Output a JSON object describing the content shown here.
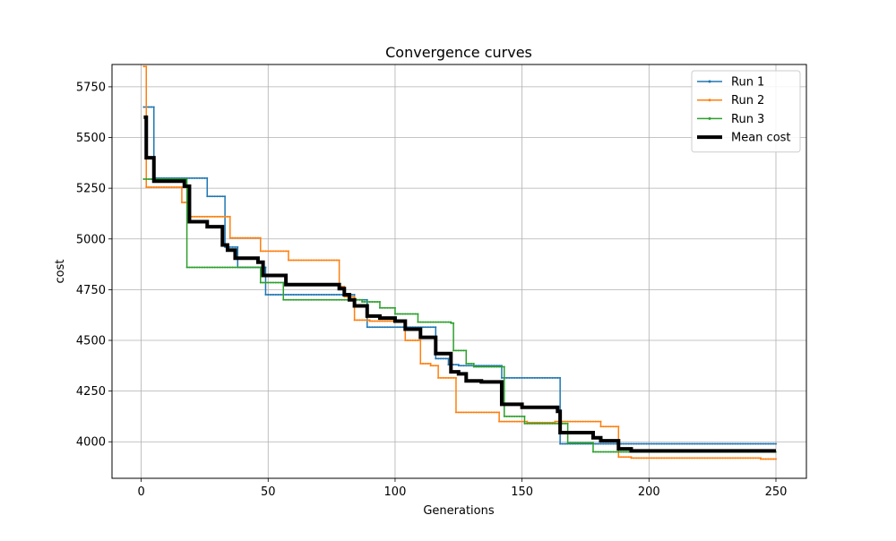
{
  "chart_data": {
    "type": "line",
    "title": "Convergence curves",
    "xlabel": "Generations",
    "ylabel": "cost",
    "xlim": [
      -11.5,
      262
    ],
    "ylim": [
      3820,
      5860
    ],
    "xticks": [
      0,
      50,
      100,
      150,
      200,
      250
    ],
    "yticks": [
      4000,
      4250,
      4500,
      4750,
      5000,
      5250,
      5500,
      5750
    ],
    "grid": true,
    "legend_position": "top-right",
    "series": [
      {
        "name": "Run 1",
        "color": "#1f77b4",
        "linewidth": 1.5,
        "marker": "dot",
        "points": [
          [
            1,
            5650
          ],
          [
            5,
            5650
          ],
          [
            5,
            5300
          ],
          [
            26,
            5300
          ],
          [
            26,
            5210
          ],
          [
            33,
            5210
          ],
          [
            33,
            4960
          ],
          [
            38,
            4960
          ],
          [
            38,
            4860
          ],
          [
            49,
            4860
          ],
          [
            49,
            4725
          ],
          [
            84,
            4725
          ],
          [
            84,
            4700
          ],
          [
            89,
            4700
          ],
          [
            89,
            4565
          ],
          [
            116,
            4565
          ],
          [
            116,
            4410
          ],
          [
            121,
            4410
          ],
          [
            121,
            4380
          ],
          [
            125,
            4380
          ],
          [
            125,
            4375
          ],
          [
            142,
            4375
          ],
          [
            142,
            4315
          ],
          [
            165,
            4315
          ],
          [
            165,
            3990
          ],
          [
            250,
            3990
          ]
        ]
      },
      {
        "name": "Run 2",
        "color": "#ff7f0e",
        "linewidth": 1.5,
        "marker": "dot",
        "points": [
          [
            1,
            5850
          ],
          [
            2,
            5850
          ],
          [
            2,
            5255
          ],
          [
            16,
            5255
          ],
          [
            16,
            5180
          ],
          [
            19,
            5180
          ],
          [
            19,
            5110
          ],
          [
            35,
            5110
          ],
          [
            35,
            5005
          ],
          [
            47,
            5005
          ],
          [
            47,
            4940
          ],
          [
            58,
            4940
          ],
          [
            58,
            4895
          ],
          [
            78,
            4895
          ],
          [
            78,
            4765
          ],
          [
            80,
            4765
          ],
          [
            80,
            4715
          ],
          [
            84,
            4715
          ],
          [
            84,
            4600
          ],
          [
            90,
            4600
          ],
          [
            90,
            4595
          ],
          [
            104,
            4595
          ],
          [
            104,
            4500
          ],
          [
            110,
            4500
          ],
          [
            110,
            4385
          ],
          [
            114,
            4385
          ],
          [
            114,
            4375
          ],
          [
            117,
            4375
          ],
          [
            117,
            4315
          ],
          [
            124,
            4315
          ],
          [
            124,
            4145
          ],
          [
            141,
            4145
          ],
          [
            141,
            4100
          ],
          [
            152,
            4100
          ],
          [
            152,
            4095
          ],
          [
            163,
            4095
          ],
          [
            163,
            4100
          ],
          [
            181,
            4100
          ],
          [
            181,
            4075
          ],
          [
            188,
            4075
          ],
          [
            188,
            3925
          ],
          [
            193,
            3925
          ],
          [
            193,
            3920
          ],
          [
            244,
            3920
          ],
          [
            244,
            3915
          ],
          [
            250,
            3915
          ]
        ]
      },
      {
        "name": "Run 3",
        "color": "#2ca02c",
        "linewidth": 1.5,
        "marker": "dot",
        "points": [
          [
            1,
            5295
          ],
          [
            18,
            5295
          ],
          [
            18,
            4860
          ],
          [
            47,
            4860
          ],
          [
            47,
            4785
          ],
          [
            56,
            4785
          ],
          [
            56,
            4700
          ],
          [
            87,
            4700
          ],
          [
            87,
            4690
          ],
          [
            94,
            4690
          ],
          [
            94,
            4660
          ],
          [
            100,
            4660
          ],
          [
            100,
            4630
          ],
          [
            109,
            4630
          ],
          [
            109,
            4590
          ],
          [
            122,
            4590
          ],
          [
            122,
            4585
          ],
          [
            123,
            4585
          ],
          [
            123,
            4450
          ],
          [
            128,
            4450
          ],
          [
            128,
            4385
          ],
          [
            131,
            4385
          ],
          [
            131,
            4370
          ],
          [
            143,
            4370
          ],
          [
            143,
            4125
          ],
          [
            151,
            4125
          ],
          [
            151,
            4090
          ],
          [
            168,
            4090
          ],
          [
            168,
            3995
          ],
          [
            178,
            3995
          ],
          [
            178,
            3950
          ],
          [
            250,
            3950
          ]
        ]
      },
      {
        "name": "Mean cost",
        "color": "#000000",
        "linewidth": 4,
        "marker": "none",
        "points": [
          [
            1,
            5600
          ],
          [
            2,
            5600
          ],
          [
            2,
            5400
          ],
          [
            5,
            5400
          ],
          [
            5,
            5285
          ],
          [
            17,
            5285
          ],
          [
            17,
            5260
          ],
          [
            19,
            5260
          ],
          [
            19,
            5085
          ],
          [
            26,
            5085
          ],
          [
            26,
            5060
          ],
          [
            32,
            5060
          ],
          [
            32,
            4970
          ],
          [
            34,
            4970
          ],
          [
            34,
            4945
          ],
          [
            37,
            4945
          ],
          [
            37,
            4905
          ],
          [
            46,
            4905
          ],
          [
            46,
            4885
          ],
          [
            48,
            4885
          ],
          [
            48,
            4820
          ],
          [
            57,
            4820
          ],
          [
            57,
            4775
          ],
          [
            78,
            4775
          ],
          [
            78,
            4755
          ],
          [
            80,
            4755
          ],
          [
            80,
            4725
          ],
          [
            82,
            4725
          ],
          [
            82,
            4700
          ],
          [
            84,
            4700
          ],
          [
            84,
            4670
          ],
          [
            89,
            4670
          ],
          [
            89,
            4620
          ],
          [
            94,
            4620
          ],
          [
            94,
            4610
          ],
          [
            100,
            4610
          ],
          [
            100,
            4595
          ],
          [
            104,
            4595
          ],
          [
            104,
            4555
          ],
          [
            110,
            4555
          ],
          [
            110,
            4515
          ],
          [
            116,
            4515
          ],
          [
            116,
            4435
          ],
          [
            122,
            4435
          ],
          [
            122,
            4345
          ],
          [
            125,
            4345
          ],
          [
            125,
            4335
          ],
          [
            128,
            4335
          ],
          [
            128,
            4300
          ],
          [
            134,
            4300
          ],
          [
            134,
            4295
          ],
          [
            142,
            4295
          ],
          [
            142,
            4185
          ],
          [
            150,
            4185
          ],
          [
            150,
            4170
          ],
          [
            164,
            4170
          ],
          [
            164,
            4150
          ],
          [
            165,
            4150
          ],
          [
            165,
            4045
          ],
          [
            178,
            4045
          ],
          [
            178,
            4020
          ],
          [
            181,
            4020
          ],
          [
            181,
            4005
          ],
          [
            188,
            4005
          ],
          [
            188,
            3965
          ],
          [
            193,
            3965
          ],
          [
            193,
            3955
          ],
          [
            250,
            3955
          ]
        ]
      }
    ]
  }
}
